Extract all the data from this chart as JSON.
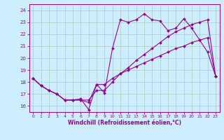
{
  "xlabel": "Windchill (Refroidissement éolien,°C)",
  "bg_color": "#cceeff",
  "line_color": "#990099",
  "grid_color": "#aaccbb",
  "xlim": [
    -0.5,
    23.5
  ],
  "ylim": [
    15.5,
    24.5
  ],
  "xticks": [
    0,
    1,
    2,
    3,
    4,
    5,
    6,
    7,
    8,
    9,
    10,
    11,
    12,
    13,
    14,
    15,
    16,
    17,
    18,
    19,
    20,
    21,
    22,
    23
  ],
  "yticks": [
    16,
    17,
    18,
    19,
    20,
    21,
    22,
    23,
    24
  ],
  "curve1_x": [
    0,
    1,
    2,
    3,
    4,
    5,
    6,
    7,
    8,
    9,
    10,
    11,
    12,
    13,
    14,
    15,
    16,
    17,
    18,
    19,
    20,
    21,
    22,
    23
  ],
  "curve1_y": [
    18.3,
    17.7,
    17.3,
    17.0,
    16.5,
    16.5,
    16.6,
    15.7,
    17.8,
    17.1,
    20.8,
    23.2,
    23.0,
    23.2,
    23.7,
    23.2,
    23.1,
    22.3,
    22.5,
    23.3,
    22.5,
    21.5,
    20.5,
    18.5
  ],
  "curve2_x": [
    0,
    1,
    2,
    3,
    4,
    5,
    6,
    7,
    8,
    9,
    10,
    11,
    12,
    13,
    14,
    15,
    16,
    17,
    18,
    19,
    20,
    21,
    22,
    23
  ],
  "curve2_y": [
    18.3,
    17.7,
    17.3,
    17.0,
    16.5,
    16.5,
    16.5,
    16.5,
    17.3,
    17.3,
    18.0,
    18.7,
    19.2,
    19.8,
    20.3,
    20.8,
    21.3,
    21.8,
    22.2,
    22.5,
    22.8,
    23.0,
    23.2,
    18.5
  ],
  "curve3_x": [
    0,
    1,
    2,
    3,
    4,
    5,
    6,
    7,
    8,
    9,
    10,
    11,
    12,
    13,
    14,
    15,
    16,
    17,
    18,
    19,
    20,
    21,
    22,
    23
  ],
  "curve3_y": [
    18.3,
    17.7,
    17.3,
    17.0,
    16.5,
    16.5,
    16.5,
    16.3,
    17.8,
    17.8,
    18.3,
    18.7,
    19.0,
    19.3,
    19.6,
    19.9,
    20.2,
    20.5,
    20.8,
    21.0,
    21.3,
    21.5,
    21.7,
    18.5
  ]
}
